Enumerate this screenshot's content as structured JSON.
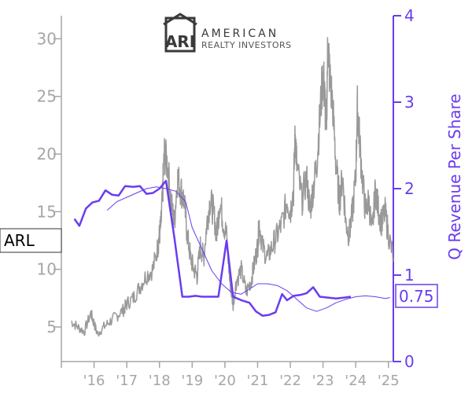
{
  "chart_data": {
    "type": "line",
    "ticker": "ARL",
    "logo": {
      "mark": "ARI",
      "line1": "AMERICAN",
      "line2": "REALTY INVESTORS"
    },
    "x_tick_labels": [
      "'16",
      "'17",
      "'18",
      "'19",
      "'20",
      "'21",
      "'22",
      "'23",
      "'24",
      "'25"
    ],
    "left_axis": {
      "ylim": [
        2,
        32
      ],
      "ticks": [
        5,
        10,
        15,
        20,
        25,
        30
      ]
    },
    "right_axis": {
      "label": "Q Revenue Per Share",
      "ylim": [
        0,
        4
      ],
      "ticks": [
        0,
        1,
        2,
        3,
        4
      ]
    },
    "latest_value_label": "0.75",
    "colors": {
      "price": "#999999",
      "revenue": "#6a3cf0",
      "axis": "#a6a6a6"
    },
    "series": [
      {
        "axis": "left",
        "style": "noisy-gray",
        "points": [
          [
            2015.3,
            5.5
          ],
          [
            2015.5,
            5.0
          ],
          [
            2015.7,
            4.6
          ],
          [
            2015.9,
            6.2
          ],
          [
            2016.0,
            5.3
          ],
          [
            2016.1,
            4.4
          ],
          [
            2016.3,
            5.0
          ],
          [
            2016.5,
            5.5
          ],
          [
            2016.7,
            6.0
          ],
          [
            2016.9,
            6.5
          ],
          [
            2017.0,
            7.0
          ],
          [
            2017.2,
            7.5
          ],
          [
            2017.4,
            8.5
          ],
          [
            2017.6,
            9.5
          ],
          [
            2017.8,
            10.0
          ],
          [
            2017.95,
            12.0
          ],
          [
            2018.0,
            13.0
          ],
          [
            2018.05,
            14.0
          ],
          [
            2018.1,
            17.0
          ],
          [
            2018.15,
            20.0
          ],
          [
            2018.25,
            19.0
          ],
          [
            2018.35,
            16.0
          ],
          [
            2018.45,
            14.0
          ],
          [
            2018.55,
            18.0
          ],
          [
            2018.65,
            17.0
          ],
          [
            2018.75,
            16.0
          ],
          [
            2018.85,
            13.0
          ],
          [
            2018.95,
            11.0
          ],
          [
            2019.05,
            10.0
          ],
          [
            2019.15,
            9.5
          ],
          [
            2019.25,
            12.0
          ],
          [
            2019.35,
            11.0
          ],
          [
            2019.45,
            14.0
          ],
          [
            2019.55,
            16.0
          ],
          [
            2019.65,
            15.0
          ],
          [
            2019.75,
            13.0
          ],
          [
            2019.85,
            16.0
          ],
          [
            2019.95,
            14.0
          ],
          [
            2020.05,
            13.0
          ],
          [
            2020.15,
            9.0
          ],
          [
            2020.25,
            7.0
          ],
          [
            2020.35,
            9.0
          ],
          [
            2020.5,
            10.0
          ],
          [
            2020.65,
            8.0
          ],
          [
            2020.8,
            9.0
          ],
          [
            2020.9,
            10.5
          ],
          [
            2021.0,
            12.0
          ],
          [
            2021.05,
            14.0
          ],
          [
            2021.15,
            12.0
          ],
          [
            2021.3,
            11.0
          ],
          [
            2021.45,
            12.0
          ],
          [
            2021.6,
            13.0
          ],
          [
            2021.75,
            14.0
          ],
          [
            2021.9,
            16.0
          ],
          [
            2022.0,
            15.0
          ],
          [
            2022.1,
            17.0
          ],
          [
            2022.15,
            22.0
          ],
          [
            2022.2,
            19.0
          ],
          [
            2022.35,
            16.0
          ],
          [
            2022.5,
            18.0
          ],
          [
            2022.6,
            15.0
          ],
          [
            2022.7,
            17.0
          ],
          [
            2022.8,
            19.0
          ],
          [
            2022.9,
            23.0
          ],
          [
            2023.0,
            27.0
          ],
          [
            2023.05,
            25.0
          ],
          [
            2023.1,
            22.0
          ],
          [
            2023.15,
            30.0
          ],
          [
            2023.2,
            27.0
          ],
          [
            2023.3,
            24.0
          ],
          [
            2023.4,
            19.0
          ],
          [
            2023.5,
            16.0
          ],
          [
            2023.6,
            18.0
          ],
          [
            2023.7,
            14.0
          ],
          [
            2023.8,
            13.0
          ],
          [
            2023.9,
            15.0
          ],
          [
            2024.0,
            18.0
          ],
          [
            2024.05,
            24.0
          ],
          [
            2024.1,
            22.0
          ],
          [
            2024.2,
            18.0
          ],
          [
            2024.3,
            15.0
          ],
          [
            2024.4,
            16.0
          ],
          [
            2024.5,
            13.0
          ],
          [
            2024.6,
            17.0
          ],
          [
            2024.7,
            15.0
          ],
          [
            2024.8,
            14.0
          ],
          [
            2024.9,
            15.0
          ],
          [
            2025.0,
            13.0
          ],
          [
            2025.15,
            11.0
          ]
        ]
      },
      {
        "axis": "right",
        "style": "thin-trend",
        "points": [
          [
            2016.4,
            1.75
          ],
          [
            2016.7,
            1.85
          ],
          [
            2017.0,
            1.9
          ],
          [
            2017.3,
            1.95
          ],
          [
            2017.6,
            2.0
          ],
          [
            2017.9,
            2.02
          ],
          [
            2018.2,
            2.0
          ],
          [
            2018.5,
            1.97
          ],
          [
            2018.8,
            1.85
          ],
          [
            2019.0,
            1.55
          ],
          [
            2019.3,
            1.3
          ],
          [
            2019.6,
            1.05
          ],
          [
            2019.9,
            0.9
          ],
          [
            2020.2,
            0.8
          ],
          [
            2020.5,
            0.78
          ],
          [
            2020.8,
            0.85
          ],
          [
            2021.0,
            0.9
          ],
          [
            2021.3,
            0.9
          ],
          [
            2021.6,
            0.88
          ],
          [
            2021.9,
            0.82
          ],
          [
            2022.2,
            0.72
          ],
          [
            2022.5,
            0.62
          ],
          [
            2022.8,
            0.58
          ],
          [
            2023.1,
            0.62
          ],
          [
            2023.4,
            0.68
          ],
          [
            2023.7,
            0.72
          ],
          [
            2024.0,
            0.75
          ],
          [
            2024.3,
            0.76
          ],
          [
            2024.6,
            0.75
          ],
          [
            2024.9,
            0.73
          ],
          [
            2025.05,
            0.74
          ]
        ]
      },
      {
        "axis": "right",
        "style": "bold-quarterly",
        "points": [
          [
            2015.4,
            1.65
          ],
          [
            2015.55,
            1.57
          ],
          [
            2015.75,
            1.77
          ],
          [
            2015.95,
            1.84
          ],
          [
            2016.15,
            1.86
          ],
          [
            2016.35,
            1.98
          ],
          [
            2016.55,
            1.93
          ],
          [
            2016.75,
            1.92
          ],
          [
            2016.95,
            2.03
          ],
          [
            2017.2,
            2.02
          ],
          [
            2017.4,
            2.03
          ],
          [
            2017.6,
            1.94
          ],
          [
            2017.8,
            1.95
          ],
          [
            2018.0,
            2.0
          ],
          [
            2018.2,
            2.09
          ],
          [
            2018.45,
            1.45
          ],
          [
            2018.7,
            0.75
          ],
          [
            2018.9,
            0.75
          ],
          [
            2019.1,
            0.76
          ],
          [
            2019.3,
            0.75
          ],
          [
            2019.55,
            0.75
          ],
          [
            2019.8,
            0.75
          ],
          [
            2020.05,
            1.4
          ],
          [
            2020.25,
            0.75
          ],
          [
            2020.5,
            0.71
          ],
          [
            2020.75,
            0.68
          ],
          [
            2020.95,
            0.58
          ],
          [
            2021.15,
            0.53
          ],
          [
            2021.35,
            0.54
          ],
          [
            2021.55,
            0.57
          ],
          [
            2021.75,
            0.78
          ],
          [
            2021.9,
            0.71
          ],
          [
            2022.1,
            0.76
          ],
          [
            2022.3,
            0.77
          ],
          [
            2022.5,
            0.79
          ],
          [
            2022.7,
            0.86
          ],
          [
            2022.9,
            0.75
          ],
          [
            2023.15,
            0.74
          ],
          [
            2023.4,
            0.73
          ],
          [
            2023.65,
            0.74
          ],
          [
            2023.85,
            0.75
          ]
        ]
      }
    ]
  }
}
